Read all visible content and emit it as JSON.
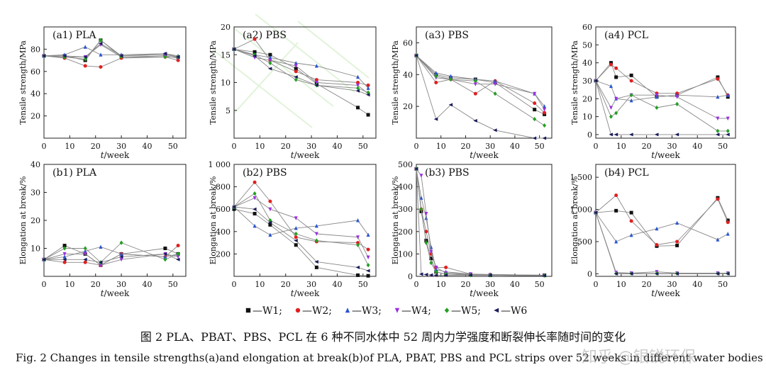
{
  "figure": {
    "caption_zh": "图 2   PLA、PBAT、PBS、PCL 在 6 种不同水体中 52 周内力学强度和断裂伸长率随时间的变化",
    "caption_en": "Fig. 2    Changes in tensile strengths(a)and elongation at break(b)of PLA, PBAT, PBS and PCL strips over 52 weeks in different water bodies",
    "watermark": "知乎 @银锐环保",
    "legend": [
      {
        "name": "—W1;",
        "marker": "square",
        "color": "#111111"
      },
      {
        "name": "—W2;",
        "marker": "circle",
        "color": "#e02020"
      },
      {
        "name": "—W3;",
        "marker": "triangle-up",
        "color": "#2a55d0"
      },
      {
        "name": "—W4;",
        "marker": "triangle-down",
        "color": "#9a30e0"
      },
      {
        "name": "—W5;",
        "marker": "diamond",
        "color": "#22a022"
      },
      {
        "name": "—W6",
        "marker": "triangle-left",
        "color": "#1a1a5a"
      }
    ]
  },
  "chart_data": [
    {
      "id": "a1",
      "type": "line",
      "title": "(a1) PLA",
      "ylabel": "Tensile strength/MPa",
      "xlabel_italic": "t",
      "xlabel_rest": "/week",
      "xlim": [
        0,
        55
      ],
      "ylim": [
        0,
        100
      ],
      "xticks": [
        0,
        10,
        20,
        30,
        40,
        50
      ],
      "yticks": [
        20,
        40,
        60,
        80
      ],
      "ytick_labels": [
        "20",
        "40",
        "60",
        "80"
      ],
      "x": [
        0,
        8,
        16,
        22,
        30,
        47,
        52
      ],
      "series": [
        {
          "name": "W1",
          "values": [
            74,
            74,
            70,
            88,
            74,
            75,
            73
          ]
        },
        {
          "name": "W2",
          "values": [
            74,
            72,
            65,
            64,
            72,
            73,
            70
          ]
        },
        {
          "name": "W3",
          "values": [
            74,
            75,
            82,
            75,
            75,
            76,
            74
          ]
        },
        {
          "name": "W4",
          "values": [
            74,
            73,
            73,
            84,
            73,
            74,
            72
          ]
        },
        {
          "name": "W5",
          "values": [
            74,
            73,
            71,
            88,
            73,
            73,
            73
          ]
        },
        {
          "name": "W6",
          "values": [
            74,
            74,
            73,
            85,
            74,
            76,
            73
          ]
        }
      ]
    },
    {
      "id": "a2",
      "type": "line",
      "title": "(a2) PBS",
      "ylabel": "Tensile strength/MPa",
      "xlabel_italic": "t",
      "xlabel_rest": "/week",
      "xlim": [
        0,
        55
      ],
      "ylim": [
        0,
        20
      ],
      "xticks": [
        0,
        10,
        20,
        30,
        40,
        50
      ],
      "yticks": [
        5,
        10,
        15,
        20
      ],
      "ytick_labels": [
        "5",
        "10",
        "15",
        "20"
      ],
      "x": [
        0,
        8,
        14,
        24,
        32,
        48,
        52
      ],
      "series": [
        {
          "name": "W1",
          "values": [
            16,
            15.5,
            15,
            12.5,
            9.8,
            5.5,
            4.2
          ]
        },
        {
          "name": "W2",
          "values": [
            16,
            17.8,
            14,
            12,
            10.5,
            10,
            9.5
          ]
        },
        {
          "name": "W3",
          "values": [
            16,
            15,
            14.5,
            13.5,
            13,
            11,
            9
          ]
        },
        {
          "name": "W4",
          "values": [
            16,
            14.5,
            14,
            13,
            10,
            9.5,
            8
          ]
        },
        {
          "name": "W5",
          "values": [
            16,
            15,
            13.5,
            10.5,
            9.5,
            9,
            8.2
          ]
        },
        {
          "name": "W6",
          "values": [
            16,
            14.8,
            12.5,
            11,
            9.5,
            8.5,
            7.8
          ]
        }
      ]
    },
    {
      "id": "a3",
      "type": "line",
      "title": "(a3) PBS",
      "ylabel": "Tensile strength/MPa",
      "xlabel_italic": "t",
      "xlabel_rest": "/week",
      "xlim": [
        0,
        55
      ],
      "ylim": [
        0,
        70
      ],
      "xticks": [
        0,
        10,
        20,
        30,
        40,
        50
      ],
      "yticks": [
        20,
        40,
        60
      ],
      "ytick_labels": [
        "20",
        "40",
        "60"
      ],
      "x": [
        0,
        8,
        14,
        24,
        32,
        48,
        52
      ],
      "series": [
        {
          "name": "W1",
          "values": [
            52,
            40,
            38,
            37,
            35,
            18,
            15
          ]
        },
        {
          "name": "W2",
          "values": [
            52,
            35,
            37,
            28,
            36,
            22,
            16
          ]
        },
        {
          "name": "W3",
          "values": [
            52,
            41,
            39,
            37,
            36,
            28,
            20
          ]
        },
        {
          "name": "W4",
          "values": [
            52,
            38,
            37,
            34,
            34,
            28,
            18
          ]
        },
        {
          "name": "W5",
          "values": [
            52,
            39,
            37,
            36,
            28,
            12,
            8
          ]
        },
        {
          "name": "W6",
          "values": [
            52,
            12,
            21,
            11,
            5,
            0,
            0
          ]
        }
      ]
    },
    {
      "id": "a4",
      "type": "line",
      "title": "(a4) PCL",
      "ylabel": "Tensile strength/MPa",
      "xlabel_italic": "t",
      "xlabel_rest": "/week",
      "xlim": [
        0,
        55
      ],
      "ylim": [
        -2,
        60
      ],
      "xticks": [
        0,
        10,
        20,
        30,
        40,
        50
      ],
      "yticks": [
        0,
        10,
        20,
        30,
        40,
        50,
        60
      ],
      "ytick_labels": [
        "0",
        "10",
        "20",
        "30",
        "40",
        "50",
        "60"
      ],
      "x": [
        0,
        6,
        8,
        14,
        24,
        32,
        48,
        52
      ],
      "series": [
        {
          "name": "W1",
          "values": [
            30,
            40,
            32,
            33,
            21,
            22,
            32,
            21
          ]
        },
        {
          "name": "W2",
          "values": [
            30,
            39,
            37,
            30,
            23,
            23,
            31,
            22
          ]
        },
        {
          "name": "W3",
          "values": [
            30,
            27,
            20,
            19,
            21,
            22,
            21,
            22
          ]
        },
        {
          "name": "W4",
          "values": [
            30,
            15,
            20,
            22,
            22,
            21,
            9,
            9
          ]
        },
        {
          "name": "W5",
          "values": [
            30,
            10,
            12,
            22,
            15,
            17,
            2,
            2
          ]
        },
        {
          "name": "W6",
          "values": [
            30,
            0,
            0,
            0,
            0,
            0,
            0,
            0
          ]
        }
      ]
    },
    {
      "id": "b1",
      "type": "line",
      "title": "(b1) PLA",
      "ylabel": "Elongation at break/%",
      "xlabel_italic": "t",
      "xlabel_rest": "/week",
      "xlim": [
        0,
        55
      ],
      "ylim": [
        0,
        40
      ],
      "xticks": [
        0,
        10,
        20,
        30,
        40,
        50
      ],
      "yticks": [
        10,
        20,
        30,
        40
      ],
      "ytick_labels": [
        "10",
        "20",
        "30",
        "40"
      ],
      "x": [
        0,
        8,
        16,
        22,
        30,
        47,
        52
      ],
      "series": [
        {
          "name": "W1",
          "values": [
            6,
            11,
            8,
            4,
            8,
            10,
            8
          ]
        },
        {
          "name": "W2",
          "values": [
            6,
            5,
            5,
            4,
            8,
            7,
            11
          ]
        },
        {
          "name": "W3",
          "values": [
            6,
            7,
            9,
            10.5,
            8,
            7,
            8
          ]
        },
        {
          "name": "W4",
          "values": [
            6,
            8,
            8,
            4,
            6,
            8,
            7
          ]
        },
        {
          "name": "W5",
          "values": [
            6,
            10,
            10,
            5,
            12,
            6,
            8
          ]
        },
        {
          "name": "W6",
          "values": [
            6,
            6,
            6,
            5,
            7,
            8,
            6
          ]
        }
      ]
    },
    {
      "id": "b2",
      "type": "line",
      "title": "(b2) PBS",
      "ylabel": "Elongation at break/%",
      "xlabel_italic": "t",
      "xlabel_rest": "/week",
      "xlim": [
        0,
        55
      ],
      "ylim": [
        0,
        1000
      ],
      "xticks": [
        0,
        10,
        20,
        30,
        40,
        50
      ],
      "yticks": [
        200,
        400,
        600,
        800,
        1000
      ],
      "ytick_labels": [
        "200",
        "400",
        "600",
        "800",
        "1 000"
      ],
      "x": [
        0,
        8,
        14,
        24,
        32,
        48,
        52
      ],
      "series": [
        {
          "name": "W1",
          "values": [
            600,
            560,
            460,
            280,
            80,
            10,
            5
          ]
        },
        {
          "name": "W2",
          "values": [
            620,
            840,
            670,
            350,
            310,
            300,
            240
          ]
        },
        {
          "name": "W3",
          "values": [
            620,
            450,
            370,
            430,
            450,
            500,
            370
          ]
        },
        {
          "name": "W4",
          "values": [
            620,
            700,
            600,
            520,
            380,
            350,
            170
          ]
        },
        {
          "name": "W5",
          "values": [
            620,
            740,
            500,
            380,
            320,
            280,
            100
          ]
        },
        {
          "name": "W6",
          "values": [
            620,
            600,
            480,
            320,
            130,
            80,
            50
          ]
        }
      ]
    },
    {
      "id": "b3",
      "type": "line",
      "title": "(b3) PBS",
      "ylabel": "Elongation at break/%",
      "xlabel_italic": "t",
      "xlabel_rest": "/week",
      "xlim": [
        0,
        55
      ],
      "ylim": [
        0,
        500
      ],
      "xticks": [
        0,
        10,
        20,
        30,
        40,
        50
      ],
      "yticks": [
        0,
        100,
        200,
        300,
        400,
        500
      ],
      "ytick_labels": [
        "0",
        "100",
        "200",
        "300",
        "400",
        "500"
      ],
      "x": [
        0,
        2,
        4,
        6,
        8,
        12,
        22,
        30,
        52
      ],
      "series": [
        {
          "name": "W1",
          "values": [
            480,
            290,
            160,
            80,
            20,
            10,
            8,
            5,
            5
          ]
        },
        {
          "name": "W2",
          "values": [
            480,
            300,
            200,
            100,
            40,
            40,
            10,
            8,
            5
          ]
        },
        {
          "name": "W3",
          "values": [
            480,
            350,
            260,
            130,
            30,
            20,
            10,
            8,
            5
          ]
        },
        {
          "name": "W4",
          "values": [
            480,
            450,
            280,
            110,
            40,
            15,
            10,
            5,
            3
          ]
        },
        {
          "name": "W5",
          "values": [
            480,
            300,
            150,
            60,
            20,
            10,
            5,
            5,
            3
          ]
        },
        {
          "name": "W6",
          "values": [
            480,
            10,
            8,
            6,
            5,
            5,
            5,
            5,
            3
          ]
        }
      ]
    },
    {
      "id": "b4",
      "type": "line",
      "title": "(b4) PCL",
      "ylabel": "Elongation at break/%",
      "xlabel_italic": "t",
      "xlabel_rest": "/week",
      "xlim": [
        0,
        55
      ],
      "ylim": [
        -40,
        1700
      ],
      "xticks": [
        0,
        10,
        20,
        30,
        40,
        50
      ],
      "yticks": [
        0,
        500,
        1000,
        1500
      ],
      "ytick_labels": [
        "0",
        "500",
        "1 000",
        "1 500"
      ],
      "x": [
        0,
        8,
        14,
        24,
        32,
        48,
        52
      ],
      "series": [
        {
          "name": "W1",
          "values": [
            950,
            980,
            950,
            430,
            440,
            1180,
            830
          ]
        },
        {
          "name": "W2",
          "values": [
            950,
            1220,
            820,
            450,
            500,
            1160,
            800
          ]
        },
        {
          "name": "W3",
          "values": [
            950,
            500,
            600,
            700,
            790,
            530,
            620
          ]
        },
        {
          "name": "W4",
          "values": [
            950,
            20,
            10,
            30,
            10,
            10,
            10
          ]
        },
        {
          "name": "W5",
          "values": [
            950,
            5,
            5,
            5,
            5,
            5,
            5
          ]
        },
        {
          "name": "W6",
          "values": [
            950,
            0,
            0,
            0,
            0,
            0,
            0
          ]
        }
      ]
    }
  ]
}
